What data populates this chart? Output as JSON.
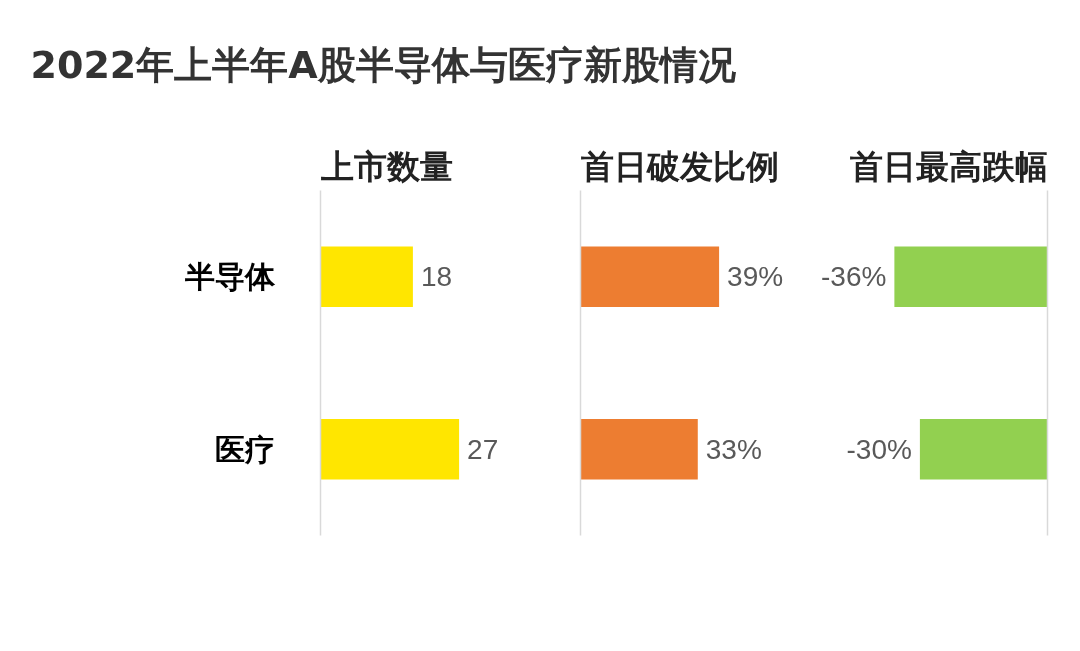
{
  "chart_data": [
    {
      "type": "other",
      "title": "2022年上半年A股半导体与医疗新股情况"
    },
    {
      "type": "bar",
      "orientation": "horizontal",
      "title": "上市数量",
      "categories": [
        "半导体",
        "医疗"
      ],
      "values": [
        18,
        27
      ],
      "color": "#ffe600",
      "data_labels": true,
      "tick_labels": "y"
    },
    {
      "type": "bar",
      "orientation": "horizontal",
      "title": "首日破发比例",
      "values": [
        39,
        33
      ],
      "value_labels": [
        "39%",
        "33%"
      ],
      "color": "#ed7d31"
    },
    {
      "type": "bar",
      "orientation": "horizontal",
      "title": "首日最高跌幅",
      "values": [
        -36,
        -30
      ],
      "value_labels": [
        "-36%",
        "-30%"
      ],
      "color": "#92d050"
    }
  ]
}
